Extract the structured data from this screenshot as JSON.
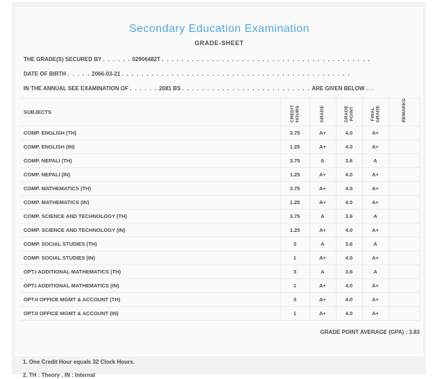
{
  "header": {
    "title": "Secondary Education Examination",
    "subtitle": "GRADE-SHEET",
    "title_color": "#4FA6E4",
    "text_color": "#4b4b4d"
  },
  "info_lines": [
    {
      "prefix": "THE GRADE(S) SECURED BY",
      "dots_before": ". . . . . .",
      "value": "02906482T",
      "dots_after": ". . . . . . . . . . . . . . . . . . . . . . . . . . . . . . . . . . . . . . . . . .",
      "suffix": ""
    },
    {
      "prefix": "DATE OF BIRTH",
      "dots_before": ". . . . .",
      "value": "2066-03-21",
      "dots_after": ". . . . . . . . . . . . . . . . . . . . . . . . . . . . . . . . . . . . . . . . . . . . . .",
      "suffix": ""
    },
    {
      "prefix": "IN THE ANNUAL SEE EXAMINATION OF",
      "dots_before": ". . . . . .",
      "value": "2081 BS",
      "dots_after": ". . . . . . . . . . . . . . . . . . . . . . . . . .",
      "suffix": "ARE GIVEN BELOW . . ."
    }
  ],
  "table": {
    "subjects_header": "SUBJECTS",
    "columns": [
      "CREDIT\nHOURS",
      "GRADE",
      "GRADE\nPOINT",
      "FINAL\nGRADE",
      "REMARKS"
    ],
    "rows": [
      {
        "subject": "COMP. ENGLISH (TH)",
        "credit_hours": "3.75",
        "grade": "A+",
        "grade_point": "4.0",
        "final_grade": "A+",
        "remarks": ""
      },
      {
        "subject": "COMP. ENGLISH (IN)",
        "credit_hours": "1.25",
        "grade": "A+",
        "grade_point": "4.0",
        "final_grade": "A+",
        "remarks": ""
      },
      {
        "subject": "COMP. NEPALI (TH)",
        "credit_hours": "3.75",
        "grade": "A",
        "grade_point": "3.6",
        "final_grade": "A",
        "remarks": ""
      },
      {
        "subject": "COMP. NEPALI (IN)",
        "credit_hours": "1.25",
        "grade": "A+",
        "grade_point": "4.0",
        "final_grade": "A+",
        "remarks": ""
      },
      {
        "subject": "COMP. MATHEMATICS (TH)",
        "credit_hours": "3.75",
        "grade": "A+",
        "grade_point": "4.0",
        "final_grade": "A+",
        "remarks": ""
      },
      {
        "subject": "COMP. MATHEMATICS (IN)",
        "credit_hours": "1.25",
        "grade": "A+",
        "grade_point": "4.0",
        "final_grade": "A+",
        "remarks": ""
      },
      {
        "subject": "COMP. SCIENCE AND TECHNOLOGY (TH)",
        "credit_hours": "3.75",
        "grade": "A",
        "grade_point": "3.6",
        "final_grade": "A",
        "remarks": ""
      },
      {
        "subject": "COMP. SCIENCE AND TECHNOLOGY (IN)",
        "credit_hours": "1.25",
        "grade": "A+",
        "grade_point": "4.0",
        "final_grade": "A+",
        "remarks": ""
      },
      {
        "subject": "COMP. SOCIAL STUDIES (TH)",
        "credit_hours": "3",
        "grade": "A",
        "grade_point": "3.6",
        "final_grade": "A",
        "remarks": ""
      },
      {
        "subject": "COMP. SOCIAL STUDIES (IN)",
        "credit_hours": "1",
        "grade": "A+",
        "grade_point": "4.0",
        "final_grade": "A+",
        "remarks": ""
      },
      {
        "subject": "OPT.I ADDITIONAL MATHEMATICS (TH)",
        "credit_hours": "3",
        "grade": "A",
        "grade_point": "3.6",
        "final_grade": "A",
        "remarks": ""
      },
      {
        "subject": "OPT.I ADDITIONAL MATHEMATICS (IN)",
        "credit_hours": "1",
        "grade": "A+",
        "grade_point": "4.0",
        "final_grade": "A+",
        "remarks": ""
      },
      {
        "subject": "OPT.II OFFICE MGMT & ACCOUNT (TH)",
        "credit_hours": "3",
        "grade": "A+",
        "grade_point": "4.0",
        "final_grade": "A+",
        "remarks": ""
      },
      {
        "subject": "OPT.II OFFICE MGMT & ACCOUNT (IN)",
        "credit_hours": "1",
        "grade": "A+",
        "grade_point": "4.0",
        "final_grade": "A+",
        "remarks": ""
      }
    ]
  },
  "gpa": {
    "label": "GRADE POINT AVERAGE (GPA) :",
    "value": "3.83"
  },
  "footnotes": [
    "1. One Credit Hour equals 32 Clock Hours.",
    "2. TH : Theory , IN : Internal"
  ]
}
